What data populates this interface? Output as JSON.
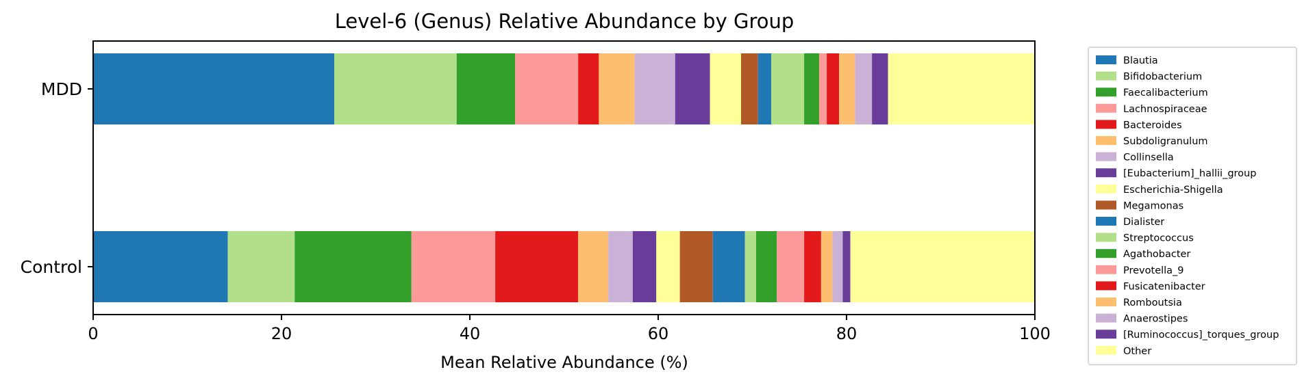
{
  "chart_data": {
    "type": "bar",
    "orientation": "horizontal",
    "stacked": true,
    "title": "Level-6 (Genus) Relative Abundance by Group",
    "xlabel": "Mean Relative Abundance (%)",
    "ylabel": "",
    "xlim": [
      0,
      100
    ],
    "xticks": [
      0,
      20,
      40,
      60,
      80,
      100
    ],
    "grid": false,
    "legend_position": "outside-right",
    "categories": [
      "MDD",
      "Control"
    ],
    "series": [
      {
        "name": "Blautia",
        "color": "#1f78b4",
        "values": [
          25.6,
          14.3
        ]
      },
      {
        "name": "Bifidobacterium",
        "color": "#b2df8a",
        "values": [
          13.0,
          7.1
        ]
      },
      {
        "name": "Faecalibacterium",
        "color": "#33a02c",
        "values": [
          6.2,
          12.4
        ]
      },
      {
        "name": "Lachnospiraceae",
        "color": "#fb9a99",
        "values": [
          6.7,
          8.9
        ]
      },
      {
        "name": "Bacteroides",
        "color": "#e31a1c",
        "values": [
          2.2,
          8.8
        ]
      },
      {
        "name": "Subdoligranulum",
        "color": "#fdbf6f",
        "values": [
          3.8,
          3.2
        ]
      },
      {
        "name": "Collinsella",
        "color": "#cab2d6",
        "values": [
          4.3,
          2.6
        ]
      },
      {
        "name": "[Eubacterium]_hallii_group",
        "color": "#6a3d9a",
        "values": [
          3.7,
          2.5
        ]
      },
      {
        "name": "Escherichia-Shigella",
        "color": "#ffff99",
        "values": [
          3.3,
          2.5
        ]
      },
      {
        "name": "Megamonas",
        "color": "#b15928",
        "values": [
          1.8,
          3.5
        ]
      },
      {
        "name": "Dialister",
        "color": "#1f78b4",
        "values": [
          1.4,
          3.4
        ]
      },
      {
        "name": "Streptococcus",
        "color": "#b2df8a",
        "values": [
          3.5,
          1.2
        ]
      },
      {
        "name": "Agathobacter",
        "color": "#33a02c",
        "values": [
          1.6,
          2.2
        ]
      },
      {
        "name": "Prevotella_9",
        "color": "#fb9a99",
        "values": [
          0.8,
          2.9
        ]
      },
      {
        "name": "Fusicatenibacter",
        "color": "#e31a1c",
        "values": [
          1.3,
          1.8
        ]
      },
      {
        "name": "Romboutsia",
        "color": "#fdbf6f",
        "values": [
          1.7,
          1.2
        ]
      },
      {
        "name": "Anaerostipes",
        "color": "#cab2d6",
        "values": [
          1.8,
          1.1
        ]
      },
      {
        "name": "[Ruminococcus]_torques_group",
        "color": "#6a3d9a",
        "values": [
          1.7,
          0.8
        ]
      },
      {
        "name": "Other",
        "color": "#ffff99",
        "values": [
          15.6,
          19.6
        ]
      }
    ]
  }
}
